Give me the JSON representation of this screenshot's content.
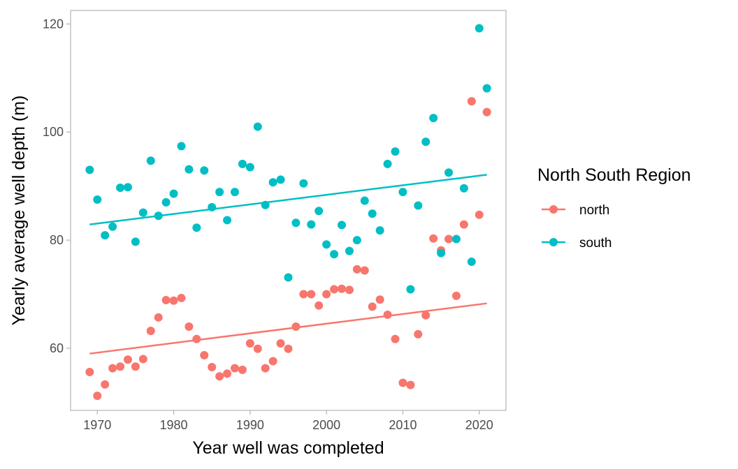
{
  "chart_data": {
    "type": "scatter",
    "xlabel": "Year well was completed",
    "ylabel": "Yearly average well depth (m)",
    "xlim": [
      1966.5,
      2023.5
    ],
    "ylim": [
      48.5,
      122.5
    ],
    "xticks": [
      1970,
      1980,
      1990,
      2000,
      2010,
      2020
    ],
    "yticks": [
      60,
      80,
      100,
      120
    ],
    "grid": false,
    "legend": {
      "title": "North South Region",
      "position": "right"
    },
    "series": [
      {
        "name": "north",
        "color": "#F8766D",
        "trend": {
          "x": [
            1969,
            2021
          ],
          "y": [
            59.0,
            68.3
          ]
        },
        "points": [
          [
            1969,
            55.6
          ],
          [
            1970,
            51.2
          ],
          [
            1971,
            53.3
          ],
          [
            1972,
            56.3
          ],
          [
            1973,
            56.6
          ],
          [
            1974,
            57.9
          ],
          [
            1975,
            56.6
          ],
          [
            1976,
            58.0
          ],
          [
            1977,
            63.2
          ],
          [
            1978,
            65.7
          ],
          [
            1979,
            68.9
          ],
          [
            1980,
            68.8
          ],
          [
            1981,
            69.3
          ],
          [
            1982,
            64.0
          ],
          [
            1983,
            61.7
          ],
          [
            1984,
            58.7
          ],
          [
            1985,
            56.5
          ],
          [
            1986,
            54.8
          ],
          [
            1987,
            55.3
          ],
          [
            1988,
            56.3
          ],
          [
            1989,
            56.0
          ],
          [
            1990,
            60.9
          ],
          [
            1991,
            59.9
          ],
          [
            1992,
            56.3
          ],
          [
            1993,
            57.6
          ],
          [
            1994,
            60.9
          ],
          [
            1995,
            59.9
          ],
          [
            1996,
            64.0
          ],
          [
            1997,
            70.0
          ],
          [
            1998,
            70.0
          ],
          [
            1999,
            67.9
          ],
          [
            2000,
            70.0
          ],
          [
            2001,
            70.9
          ],
          [
            2002,
            71.0
          ],
          [
            2003,
            70.8
          ],
          [
            2004,
            74.6
          ],
          [
            2005,
            74.4
          ],
          [
            2006,
            67.7
          ],
          [
            2007,
            69.0
          ],
          [
            2008,
            66.2
          ],
          [
            2009,
            61.7
          ],
          [
            2010,
            53.6
          ],
          [
            2011,
            53.2
          ],
          [
            2012,
            62.6
          ],
          [
            2013,
            66.1
          ],
          [
            2014,
            80.3
          ],
          [
            2015,
            78.1
          ],
          [
            2016,
            80.2
          ],
          [
            2017,
            69.7
          ],
          [
            2018,
            82.9
          ],
          [
            2019,
            105.7
          ],
          [
            2020,
            84.7
          ],
          [
            2021,
            103.7
          ]
        ]
      },
      {
        "name": "south",
        "color": "#00BFC4",
        "trend": {
          "x": [
            1969,
            2021
          ],
          "y": [
            82.9,
            92.1
          ]
        },
        "points": [
          [
            1969,
            93.0
          ],
          [
            1970,
            87.5
          ],
          [
            1971,
            80.9
          ],
          [
            1972,
            82.5
          ],
          [
            1973,
            89.7
          ],
          [
            1974,
            89.8
          ],
          [
            1975,
            79.7
          ],
          [
            1976,
            85.1
          ],
          [
            1977,
            94.7
          ],
          [
            1978,
            84.5
          ],
          [
            1979,
            87.0
          ],
          [
            1980,
            88.6
          ],
          [
            1981,
            97.4
          ],
          [
            1982,
            93.1
          ],
          [
            1983,
            82.3
          ],
          [
            1984,
            92.9
          ],
          [
            1985,
            86.1
          ],
          [
            1986,
            88.9
          ],
          [
            1987,
            83.7
          ],
          [
            1988,
            88.9
          ],
          [
            1989,
            94.1
          ],
          [
            1990,
            93.5
          ],
          [
            1991,
            101.0
          ],
          [
            1992,
            86.5
          ],
          [
            1993,
            90.7
          ],
          [
            1994,
            91.2
          ],
          [
            1995,
            73.1
          ],
          [
            1996,
            83.2
          ],
          [
            1997,
            90.5
          ],
          [
            1998,
            82.9
          ],
          [
            1999,
            85.4
          ],
          [
            2000,
            79.2
          ],
          [
            2001,
            77.4
          ],
          [
            2002,
            82.8
          ],
          [
            2003,
            78.0
          ],
          [
            2004,
            80.0
          ],
          [
            2005,
            87.3
          ],
          [
            2006,
            84.9
          ],
          [
            2007,
            81.8
          ],
          [
            2008,
            94.1
          ],
          [
            2009,
            96.4
          ],
          [
            2010,
            88.9
          ],
          [
            2011,
            70.9
          ],
          [
            2012,
            86.4
          ],
          [
            2013,
            98.2
          ],
          [
            2014,
            102.6
          ],
          [
            2015,
            77.6
          ],
          [
            2016,
            92.5
          ],
          [
            2017,
            80.2
          ],
          [
            2018,
            89.6
          ],
          [
            2019,
            76.0
          ],
          [
            2020,
            119.2
          ],
          [
            2021,
            108.1
          ]
        ]
      }
    ]
  }
}
